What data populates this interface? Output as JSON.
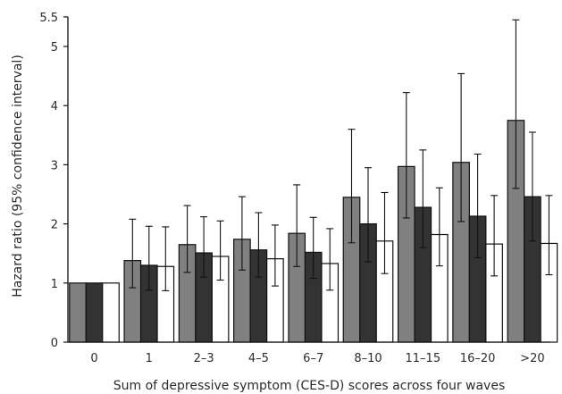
{
  "chart_data": {
    "type": "bar",
    "title": "",
    "xlabel": "Sum of depressive symptom (CES-D) scores across four waves",
    "ylabel": "Hazard ratio (95% confidence interval)",
    "ylim": [
      0,
      5.5
    ],
    "yticks": [
      0,
      1,
      2,
      3,
      4,
      5,
      5.5
    ],
    "ytick_labels": [
      "0",
      "1",
      "2",
      "3",
      "4",
      "5",
      "5.5"
    ],
    "categories": [
      "0",
      "1",
      "2–3",
      "4–5",
      "6–7",
      "8–10",
      "11–15",
      "16–20",
      ">20"
    ],
    "grid": false,
    "legend": "none",
    "series": [
      {
        "color": "#808080",
        "values": [
          1.0,
          1.38,
          1.65,
          1.74,
          1.84,
          2.45,
          2.97,
          3.04,
          3.75
        ],
        "ci_low": [
          1.0,
          0.92,
          1.18,
          1.22,
          1.28,
          1.68,
          2.1,
          2.04,
          2.6
        ],
        "ci_high": [
          1.0,
          2.08,
          2.31,
          2.46,
          2.66,
          3.6,
          4.22,
          4.54,
          5.45
        ]
      },
      {
        "color": "#333333",
        "values": [
          1.0,
          1.3,
          1.51,
          1.56,
          1.52,
          2.0,
          2.28,
          2.13,
          2.46
        ],
        "ci_low": [
          1.0,
          0.88,
          1.1,
          1.1,
          1.08,
          1.36,
          1.6,
          1.43,
          1.71
        ],
        "ci_high": [
          1.0,
          1.96,
          2.12,
          2.19,
          2.11,
          2.95,
          3.25,
          3.18,
          3.55
        ]
      },
      {
        "color": "#ffffff",
        "values": [
          1.0,
          1.28,
          1.45,
          1.41,
          1.33,
          1.71,
          1.82,
          1.66,
          1.67
        ],
        "ci_low": [
          1.0,
          0.87,
          1.05,
          0.95,
          0.88,
          1.16,
          1.29,
          1.12,
          1.14
        ],
        "ci_high": [
          1.0,
          1.95,
          2.05,
          1.98,
          1.92,
          2.53,
          2.61,
          2.48,
          2.48
        ]
      }
    ]
  }
}
